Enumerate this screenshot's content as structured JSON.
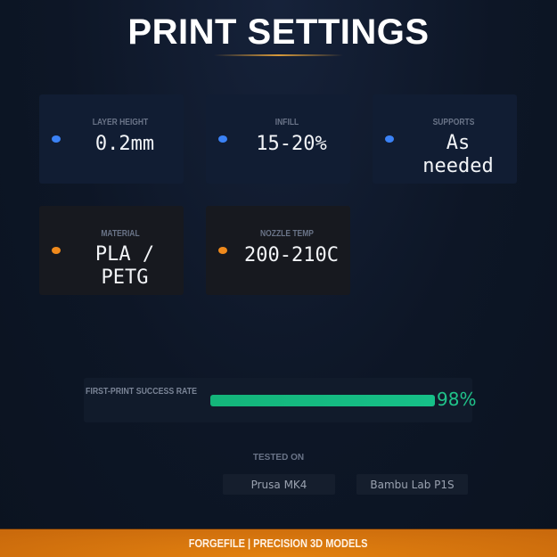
{
  "title": "PRINT SETTINGS",
  "accent_colors": {
    "blue": "#3b82f6",
    "orange": "#f08a1c",
    "green": "#20c38a",
    "footer": "#d2700e"
  },
  "settings": [
    {
      "label": "LAYER HEIGHT",
      "value": "0.2mm",
      "dot": "#3b82f6"
    },
    {
      "label": "INFILL",
      "value": "15-20%",
      "dot": "#3b82f6"
    },
    {
      "label": "SUPPORTS",
      "value": "As needed",
      "dot": "#3b82f6"
    },
    {
      "label": "MATERIAL",
      "value": "PLA / PETG",
      "dot": "#f08a1c"
    },
    {
      "label": "NOZZLE TEMP",
      "value": "200-210C",
      "dot": "#f08a1c"
    }
  ],
  "success": {
    "label": "FIRST-PRINT SUCCESS RATE",
    "value_text": "98%",
    "percent": 98
  },
  "tested": {
    "label": "TESTED ON",
    "printers": [
      "Prusa MK4",
      "Bambu Lab P1S"
    ]
  },
  "footer": "FORGEFILE | PRECISION 3D MODELS"
}
